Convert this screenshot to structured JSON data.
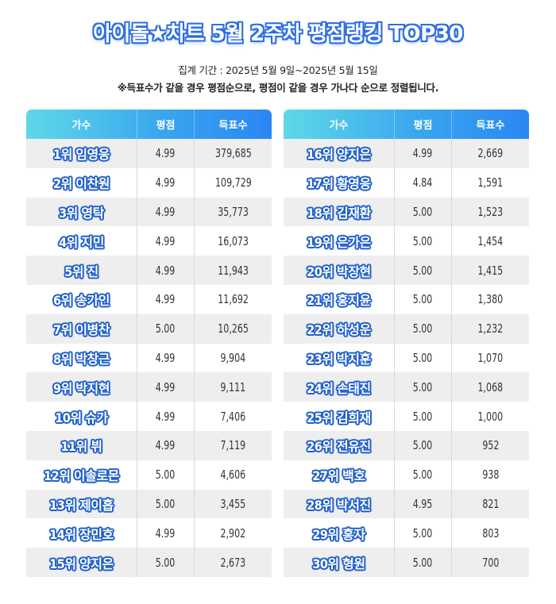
{
  "header": {
    "title": "아이돌★차트 5월 2주차 평점랭킹 TOP30",
    "period": "집계 기간 : 2025년 5월 9일~2025년 5월 15일",
    "note": "※득표수가 같을 경우 평점순으로, 평점이 같을 경우 가나다 순으로 정렬됩니다."
  },
  "colors": {
    "header_gradient_start": "#5fd8e8",
    "header_gradient_end": "#2a86f2",
    "name_outline": "#2160c9",
    "row_alt": "#eeeeee"
  },
  "columns": [
    "가수",
    "평점",
    "득표수"
  ],
  "chart_data": {
    "type": "table",
    "columns": [
      "가수",
      "평점",
      "득표수"
    ],
    "rows": [
      {
        "name": "1위 임영웅",
        "score": "4.99",
        "votes": "379,685"
      },
      {
        "name": "2위 이찬원",
        "score": "4.99",
        "votes": "109,729"
      },
      {
        "name": "3위 영탁",
        "score": "4.99",
        "votes": "35,773"
      },
      {
        "name": "4위 지민",
        "score": "4.99",
        "votes": "16,073"
      },
      {
        "name": "5위 진",
        "score": "4.99",
        "votes": "11,943"
      },
      {
        "name": "6위 송가인",
        "score": "4.99",
        "votes": "11,692"
      },
      {
        "name": "7위 이병찬",
        "score": "5.00",
        "votes": "10,265"
      },
      {
        "name": "8위 박창근",
        "score": "4.99",
        "votes": "9,904"
      },
      {
        "name": "9위 박지현",
        "score": "4.99",
        "votes": "9,111"
      },
      {
        "name": "10위 슈가",
        "score": "4.99",
        "votes": "7,406"
      },
      {
        "name": "11위 뷔",
        "score": "4.99",
        "votes": "7,119"
      },
      {
        "name": "12위 이솔로몬",
        "score": "5.00",
        "votes": "4,606"
      },
      {
        "name": "13위 제이홉",
        "score": "5.00",
        "votes": "3,455"
      },
      {
        "name": "14위 장민호",
        "score": "4.99",
        "votes": "2,902"
      },
      {
        "name": "15위 양지은",
        "score": "5.00",
        "votes": "2,673"
      },
      {
        "name": "16위 양지은",
        "score": "4.99",
        "votes": "2,669"
      },
      {
        "name": "17위 황영웅",
        "score": "4.84",
        "votes": "1,591"
      },
      {
        "name": "18위 김재환",
        "score": "5.00",
        "votes": "1,523"
      },
      {
        "name": "19위 은가은",
        "score": "5.00",
        "votes": "1,454"
      },
      {
        "name": "20위 박장현",
        "score": "5.00",
        "votes": "1,415"
      },
      {
        "name": "21위 홍지윤",
        "score": "5.00",
        "votes": "1,380"
      },
      {
        "name": "22위 하성운",
        "score": "5.00",
        "votes": "1,232"
      },
      {
        "name": "23위 박지훈",
        "score": "5.00",
        "votes": "1,070"
      },
      {
        "name": "24위 손태진",
        "score": "5.00",
        "votes": "1,068"
      },
      {
        "name": "25위 김희재",
        "score": "5.00",
        "votes": "1,000"
      },
      {
        "name": "26위 전유진",
        "score": "5.00",
        "votes": "952"
      },
      {
        "name": "27위 백호",
        "score": "5.00",
        "votes": "938"
      },
      {
        "name": "28위 박서진",
        "score": "4.95",
        "votes": "821"
      },
      {
        "name": "29위 홍자",
        "score": "5.00",
        "votes": "803"
      },
      {
        "name": "30위 형원",
        "score": "5.00",
        "votes": "700"
      }
    ]
  }
}
